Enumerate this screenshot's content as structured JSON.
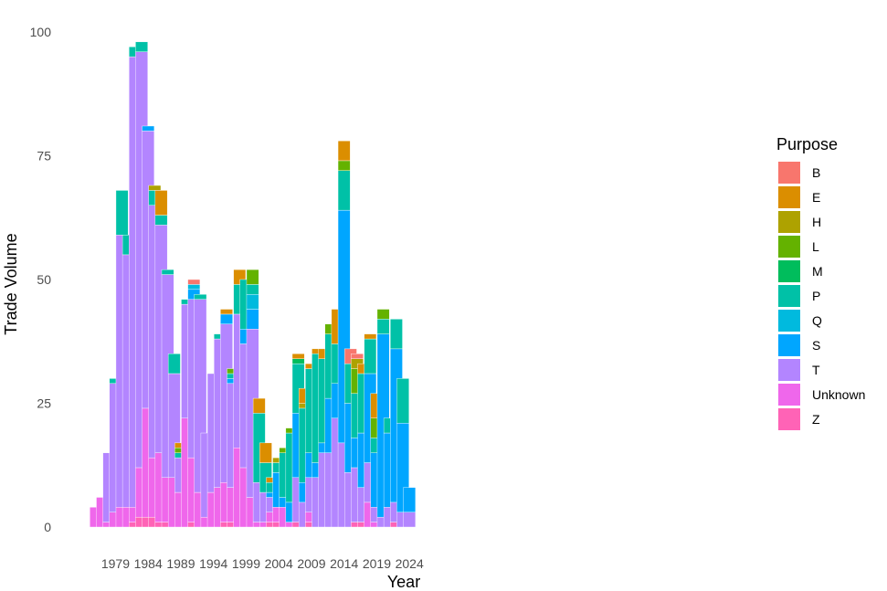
{
  "chart_data": {
    "type": "bar",
    "stacked": true,
    "title": "",
    "xlabel": "Year",
    "ylabel": "Trade Volume",
    "ylim": [
      0,
      100
    ],
    "y_ticks": [
      "0",
      "25",
      "50",
      "75",
      "100"
    ],
    "x_ticks": [
      "1979",
      "1984",
      "1989",
      "1994",
      "1999",
      "2004",
      "2009",
      "2014",
      "2019",
      "2024"
    ],
    "legend_title": "Purpose",
    "legend_position": "right",
    "stack_order": [
      "B",
      "E",
      "H",
      "L",
      "M",
      "P",
      "Q",
      "S",
      "T",
      "Unknown",
      "Z"
    ],
    "colors": {
      "B": "#F8766D",
      "E": "#DB8E00",
      "H": "#AEA200",
      "L": "#64B200",
      "M": "#00BD5C",
      "P": "#00C1A7",
      "Q": "#00BADE",
      "S": "#00A6FF",
      "T": "#B385FF",
      "Unknown": "#EF67EB",
      "Z": "#FF63B6"
    },
    "categories": [
      1976,
      1977,
      1978,
      1979,
      1980,
      1981,
      1982,
      1983,
      1984,
      1985,
      1986,
      1987,
      1988,
      1989,
      1990,
      1991,
      1992,
      1993,
      1994,
      1995,
      1996,
      1997,
      1998,
      1999,
      2000,
      2001,
      2002,
      2003,
      2004,
      2005,
      2006,
      2007,
      2008,
      2009,
      2010,
      2011,
      2012,
      2013,
      2014,
      2015,
      2016,
      2017,
      2018,
      2019,
      2020,
      2021,
      2022,
      2023,
      2024
    ],
    "series": [
      {
        "name": "Z",
        "values": [
          0,
          0,
          0,
          0,
          0,
          0,
          1,
          2,
          2,
          2,
          1,
          1,
          0,
          0,
          0,
          1,
          0,
          0,
          0,
          0,
          1,
          1,
          0,
          0,
          0,
          0,
          0,
          1,
          1,
          0,
          0,
          1,
          0,
          1,
          0,
          0,
          0,
          0,
          0,
          0,
          1,
          1,
          0,
          0,
          0,
          0,
          1,
          0,
          0
        ]
      },
      {
        "name": "Unknown",
        "values": [
          4,
          6,
          1,
          3,
          4,
          4,
          3,
          10,
          22,
          12,
          14,
          9,
          10,
          7,
          22,
          13,
          7,
          2,
          7,
          8,
          8,
          7,
          16,
          12,
          6,
          1,
          1,
          2,
          3,
          4,
          1,
          0,
          0,
          2,
          0,
          0,
          0,
          0,
          0,
          0,
          0,
          0,
          5,
          1,
          0,
          0,
          0,
          0,
          0
        ]
      },
      {
        "name": "T",
        "values": [
          0,
          0,
          14,
          26,
          55,
          51,
          91,
          84,
          56,
          51,
          46,
          41,
          21,
          7,
          23,
          32,
          39,
          17,
          24,
          30,
          32,
          21,
          27,
          25,
          34,
          8,
          6,
          3,
          0,
          0,
          0,
          9,
          5,
          7,
          10,
          15,
          15,
          22,
          17,
          11,
          11,
          7,
          8,
          3,
          2,
          4,
          4,
          3,
          3
        ]
      },
      {
        "name": "S",
        "values": [
          0,
          0,
          0,
          0,
          0,
          0,
          0,
          0,
          1,
          0,
          0,
          0,
          0,
          0,
          0,
          2,
          0,
          0,
          0,
          0,
          2,
          1,
          0,
          3,
          4,
          0,
          0,
          1,
          7,
          2,
          4,
          13,
          4,
          5,
          3,
          2,
          11,
          7,
          47,
          14,
          6,
          11,
          18,
          11,
          37,
          15,
          31,
          18,
          5
        ]
      },
      {
        "name": "Q",
        "values": [
          0,
          0,
          0,
          0,
          0,
          0,
          0,
          0,
          0,
          0,
          0,
          0,
          0,
          0,
          0,
          1,
          0,
          0,
          0,
          0,
          0,
          0,
          0,
          0,
          3,
          0,
          0,
          0,
          0,
          0,
          0,
          0,
          0,
          0,
          0,
          0,
          0,
          0,
          0,
          0,
          0,
          0,
          0,
          0,
          0,
          0,
          0,
          0,
          0
        ]
      },
      {
        "name": "P",
        "values": [
          0,
          0,
          0,
          1,
          9,
          4,
          2,
          2,
          0,
          3,
          2,
          1,
          4,
          1,
          1,
          0,
          1,
          0,
          0,
          1,
          0,
          1,
          6,
          10,
          2,
          14,
          6,
          2,
          2,
          9,
          14,
          10,
          15,
          17,
          22,
          17,
          13,
          8,
          8,
          8,
          9,
          12,
          7,
          3,
          3,
          3,
          6,
          9,
          0
        ]
      },
      {
        "name": "M",
        "values": [
          0,
          0,
          0,
          0,
          0,
          0,
          0,
          0,
          0,
          0,
          0,
          0,
          0,
          0,
          0,
          0,
          0,
          0,
          0,
          0,
          0,
          0,
          0,
          0,
          0,
          0,
          0,
          0,
          0,
          0,
          0,
          1,
          0,
          0,
          0,
          0,
          0,
          0,
          0,
          0,
          0,
          0,
          0,
          0,
          0,
          0,
          0,
          0,
          0
        ]
      },
      {
        "name": "L",
        "values": [
          0,
          0,
          0,
          0,
          0,
          0,
          0,
          0,
          0,
          0,
          0,
          0,
          0,
          1,
          0,
          0,
          0,
          0,
          0,
          0,
          0,
          1,
          0,
          0,
          3,
          0,
          0,
          0,
          0,
          1,
          1,
          0,
          0,
          0,
          0,
          0,
          2,
          0,
          2,
          0,
          5,
          0,
          0,
          4,
          2,
          0,
          0,
          0,
          0
        ]
      },
      {
        "name": "H",
        "values": [
          0,
          0,
          0,
          0,
          0,
          0,
          0,
          0,
          0,
          1,
          0,
          0,
          0,
          0,
          0,
          0,
          0,
          0,
          0,
          0,
          0,
          0,
          0,
          0,
          0,
          0,
          0,
          0,
          1,
          0,
          0,
          0,
          1,
          0,
          0,
          0,
          0,
          0,
          0,
          0,
          2,
          0,
          0,
          0,
          0,
          0,
          0,
          0,
          0
        ]
      },
      {
        "name": "E",
        "values": [
          0,
          0,
          0,
          0,
          0,
          0,
          0,
          0,
          0,
          0,
          5,
          0,
          0,
          1,
          0,
          0,
          0,
          0,
          0,
          0,
          1,
          0,
          3,
          0,
          0,
          3,
          4,
          1,
          0,
          0,
          0,
          1,
          3,
          1,
          1,
          2,
          0,
          7,
          4,
          0,
          0,
          2,
          1,
          5,
          0,
          0,
          0,
          0,
          0
        ]
      },
      {
        "name": "B",
        "values": [
          0,
          0,
          0,
          0,
          0,
          0,
          0,
          0,
          0,
          0,
          0,
          0,
          0,
          0,
          0,
          1,
          0,
          0,
          0,
          0,
          0,
          0,
          0,
          0,
          0,
          0,
          0,
          0,
          0,
          0,
          0,
          0,
          0,
          0,
          0,
          0,
          0,
          0,
          0,
          3,
          1,
          0,
          0,
          0,
          0,
          0,
          0,
          0,
          0
        ]
      }
    ]
  }
}
